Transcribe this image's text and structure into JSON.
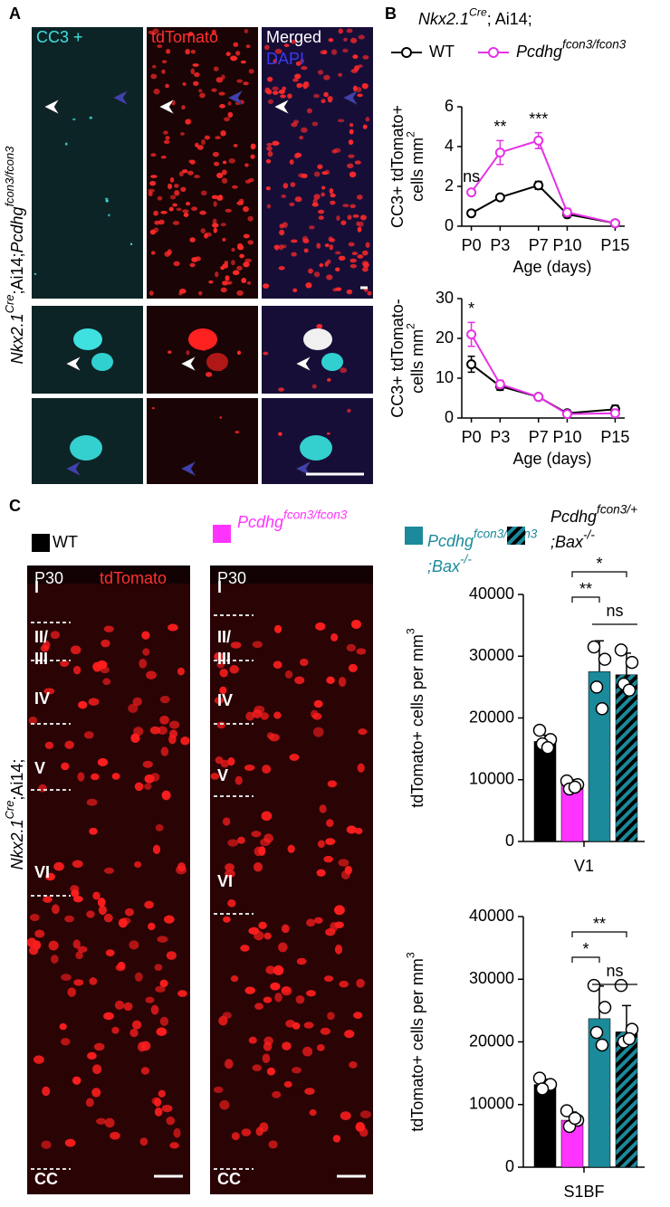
{
  "panels": {
    "a": {
      "label": "A",
      "columns": [
        "CC3 +",
        "tdTomato",
        "Merged"
      ],
      "dapi": "DAPI",
      "side_label": [
        [
          {
            "text": "Nkx2.1",
            "italic": true
          },
          {
            "text": "Cre",
            "sup": true,
            "italic": true
          },
          {
            "text": ";Ai14;"
          },
          {
            "text": "Pcdhg",
            "italic": true
          },
          {
            "text": "fcon3/fcon3",
            "sup": true,
            "italic": true
          }
        ]
      ]
    },
    "b": {
      "label": "B",
      "title": [
        [
          {
            "text": "Nkx2.1",
            "italic": true
          },
          {
            "text": "Cre",
            "sup": true,
            "italic": true
          },
          {
            "text": "; Ai14;"
          }
        ]
      ]
    },
    "c": {
      "label": "C",
      "image_labels": [
        "P30",
        "tdTomato"
      ],
      "layers": [
        [
          "I"
        ],
        [
          "II/",
          "III"
        ],
        [
          "IV"
        ],
        [
          "V"
        ],
        [
          "VI"
        ],
        [
          "CC"
        ]
      ],
      "side_label": [
        [
          {
            "text": "Nkx2.1",
            "italic": true
          },
          {
            "text": "Cre",
            "sup": true,
            "italic": true
          },
          {
            "text": ";Ai14;"
          }
        ]
      ]
    }
  },
  "chart_data": [
    {
      "type": "line",
      "x": [
        0,
        3,
        7,
        10,
        15
      ],
      "xlim": [
        -1,
        16
      ],
      "xticks": [
        {
          "value": 0,
          "label": "P0"
        },
        {
          "value": 3,
          "label": "P3"
        },
        {
          "value": 7,
          "label": "P7"
        },
        {
          "value": 10,
          "label": "P10"
        },
        {
          "value": 15,
          "label": "P15"
        }
      ],
      "ylim": [
        0,
        6
      ],
      "yticks": [
        0,
        2,
        4,
        6
      ],
      "xlabel": "Age  (days)",
      "ylabel": [
        [
          {
            "text": "CC3+ tdTomato+"
          }
        ],
        [
          {
            "text": "cells mm"
          },
          {
            "text": "2",
            "sup": true
          }
        ]
      ],
      "annotations": [
        "ns",
        "**",
        "***"
      ],
      "series": [
        {
          "name": [
            [
              {
                "text": "WT"
              }
            ]
          ],
          "color": "#000000",
          "values": [
            0.65,
            1.45,
            2.05,
            0.6,
            0.15
          ],
          "errors": [
            0.1,
            0.12,
            0.2,
            0.15,
            0.05
          ]
        },
        {
          "name": [
            [
              {
                "text": "Pcdhg",
                "italic": true
              },
              {
                "text": "fcon3/fcon3",
                "sup": true,
                "italic": true
              }
            ]
          ],
          "color": "#e632e6",
          "values": [
            1.7,
            3.7,
            4.3,
            0.7,
            0.15
          ],
          "errors": [
            0.1,
            0.6,
            0.4,
            0.2,
            0.05
          ]
        }
      ]
    },
    {
      "type": "line",
      "x": [
        0,
        3,
        7,
        10,
        15
      ],
      "xlim": [
        -1,
        16
      ],
      "xticks": [
        {
          "value": 0,
          "label": "P0"
        },
        {
          "value": 3,
          "label": "P3"
        },
        {
          "value": 7,
          "label": "P7"
        },
        {
          "value": 10,
          "label": "P10"
        },
        {
          "value": 15,
          "label": "P15"
        }
      ],
      "ylim": [
        0,
        30
      ],
      "yticks": [
        0,
        10,
        20,
        30
      ],
      "xlabel": "Age  (days)",
      "ylabel": [
        [
          {
            "text": "CC3+ tdTomato-"
          }
        ],
        [
          {
            "text": "cells mm"
          },
          {
            "text": "2",
            "sup": true
          }
        ]
      ],
      "annotations": [
        "*"
      ],
      "series": [
        {
          "color": "#000000",
          "values": [
            13.5,
            8,
            5.3,
            1.2,
            2.2
          ],
          "errors": [
            2,
            1,
            0.3,
            0.3,
            1
          ]
        },
        {
          "color": "#e632e6",
          "values": [
            21,
            8.5,
            5.3,
            1,
            1.2
          ],
          "errors": [
            3,
            1,
            0.3,
            0.3,
            1
          ]
        }
      ]
    },
    {
      "type": "bar",
      "categories": [
        "V1"
      ],
      "ylim": [
        0,
        40000
      ],
      "yticks": [
        0,
        10000,
        20000,
        30000,
        40000
      ],
      "ylabel": [
        [
          {
            "text": "tdTomato+ cells per mm"
          },
          {
            "text": "3",
            "sup": true
          }
        ]
      ],
      "annotations": [
        "*",
        "**",
        "ns"
      ],
      "series": [
        {
          "name": [
            [
              {
                "text": "WT"
              }
            ]
          ],
          "color": "#000000",
          "values": [
            16200
          ],
          "errors": [
            1000
          ],
          "points": [
            [
              18000,
              16500,
              15800,
              15200
            ]
          ]
        },
        {
          "name": [
            [
              {
                "text": "Pcdhg",
                "italic": true
              },
              {
                "text": "fcon3/fcon3",
                "sup": true,
                "italic": true
              }
            ]
          ],
          "color": "#ff33ff",
          "values": [
            9200
          ],
          "errors": [
            800
          ],
          "points": [
            [
              9800,
              9200,
              8500,
              8800
            ]
          ]
        },
        {
          "name": [
            [
              {
                "text": "Pcdhg",
                "italic": true
              },
              {
                "text": "fcon3/fcon3",
                "sup": true,
                "italic": true
              }
            ],
            [
              {
                "text": ";Bax",
                "italic": true
              },
              {
                "text": "-/-",
                "sup": true,
                "italic": true
              }
            ]
          ],
          "color": "#1b8a9a",
          "values": [
            27500
          ],
          "errors": [
            5000
          ],
          "points": [
            [
              31500,
              29500,
              25000,
              21500
            ]
          ]
        },
        {
          "name": [
            [
              {
                "text": "Pcdhg",
                "italic": true
              },
              {
                "text": "fcon3/+",
                "sup": true,
                "italic": true
              }
            ],
            [
              {
                "text": ";Bax",
                "italic": true
              },
              {
                "text": "-/-",
                "sup": true,
                "italic": true
              }
            ]
          ],
          "color": "#1b8a9a",
          "pattern": "hatch",
          "hatch_color": "#000000",
          "values": [
            27000
          ],
          "errors": [
            3500
          ],
          "points": [
            [
              31000,
              29000,
              25500,
              24500
            ]
          ]
        }
      ]
    },
    {
      "type": "bar",
      "categories": [
        "S1BF"
      ],
      "ylim": [
        0,
        40000
      ],
      "yticks": [
        0,
        10000,
        20000,
        30000,
        40000
      ],
      "ylabel": [
        [
          {
            "text": "tdTomato+ cells per mm"
          },
          {
            "text": "3",
            "sup": true
          }
        ]
      ],
      "annotations": [
        "**",
        "*",
        "ns"
      ],
      "series": [
        {
          "color": "#000000",
          "values": [
            13200
          ],
          "errors": [
            800
          ],
          "points": [
            [
              14200,
              13200,
              12500
            ]
          ]
        },
        {
          "color": "#ff33ff",
          "values": [
            7500
          ],
          "errors": [
            1300
          ],
          "points": [
            [
              9000,
              7500,
              6500,
              7800
            ]
          ]
        },
        {
          "color": "#1b8a9a",
          "values": [
            23700
          ],
          "errors": [
            5200
          ],
          "points": [
            [
              29000,
              25500,
              21500,
              19500
            ]
          ]
        },
        {
          "color": "#1b8a9a",
          "pattern": "hatch",
          "hatch_color": "#000000",
          "values": [
            21600
          ],
          "errors": [
            4200
          ],
          "points": [
            [
              29000,
              22000,
              20000,
              20500
            ]
          ]
        }
      ]
    }
  ]
}
